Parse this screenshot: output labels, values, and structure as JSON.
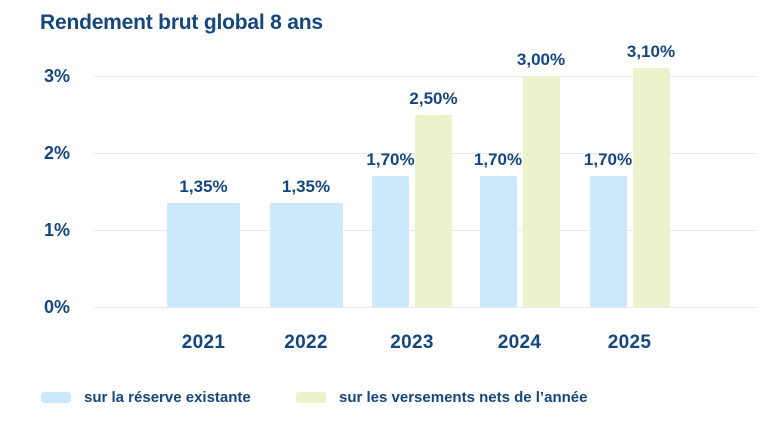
{
  "title": "Rendement brut global 8 ans",
  "colors": {
    "navy": "#14477d",
    "blue_bar": "#cbe9fb",
    "green_bar": "#ecf2c9",
    "gridline": "#e5e9f3"
  },
  "chart_data": {
    "type": "bar",
    "title": "Rendement brut global 8 ans",
    "categories": [
      "2021",
      "2022",
      "2023",
      "2024",
      "2025"
    ],
    "series": [
      {
        "name": "sur la réserve existante",
        "color_key": "blue_bar",
        "values": [
          1.35,
          1.35,
          1.7,
          1.7,
          1.7
        ],
        "labels": [
          "1,35%",
          "1,35%",
          "1,70%",
          "1,70%",
          "1,70%"
        ]
      },
      {
        "name": "sur les versements nets de l’année",
        "color_key": "green_bar",
        "values": [
          null,
          null,
          2.5,
          3.0,
          3.1
        ],
        "labels": [
          null,
          null,
          "2,50%",
          "3,00%",
          "3,10%"
        ]
      }
    ],
    "yticks": [
      {
        "label": "0%",
        "value": 0
      },
      {
        "label": "1%",
        "value": 1
      },
      {
        "label": "2%",
        "value": 2
      },
      {
        "label": "3%",
        "value": 3
      }
    ],
    "ylim": [
      0,
      3.2
    ],
    "xlabel": "",
    "ylabel": "",
    "grid": true,
    "legend_position": "bottom"
  },
  "legend": {
    "items": [
      {
        "label": "sur la réserve existante",
        "color_key": "blue_bar"
      },
      {
        "label": "sur les versements nets de l’année",
        "color_key": "green_bar"
      }
    ]
  }
}
